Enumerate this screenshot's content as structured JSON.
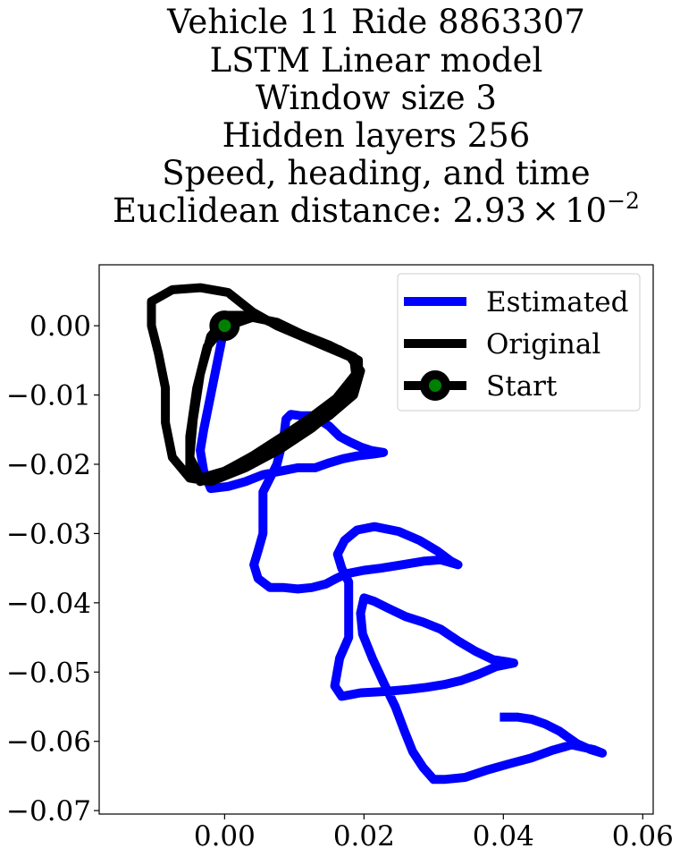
{
  "chart_data": {
    "type": "line",
    "title_lines": [
      "Vehicle 11 Ride 8863307",
      "LSTM Linear model",
      "Window size 3",
      "Hidden layers 256",
      "Speed, heading, and time"
    ],
    "title_last_prefix": "Euclidean distance: ",
    "title_last_mantissa": "2.93",
    "title_last_times": "×",
    "title_last_base": "10",
    "title_last_exponent": "−2",
    "xlabel": "",
    "ylabel": "",
    "xlim": [
      -0.018,
      0.0615
    ],
    "ylim": [
      -0.0705,
      0.0088
    ],
    "xticks": [
      0.0,
      0.02,
      0.04,
      0.06
    ],
    "xtick_labels": [
      "0.00",
      "0.02",
      "0.04",
      "0.06"
    ],
    "yticks": [
      0.0,
      -0.01,
      -0.02,
      -0.03,
      -0.04,
      -0.05,
      -0.06,
      -0.07
    ],
    "ytick_labels": [
      "0.00",
      "−0.01",
      "−0.02",
      "−0.03",
      "−0.04",
      "−0.05",
      "−0.06",
      "−0.07"
    ],
    "grid": false,
    "legend_position": "upper right",
    "series": [
      {
        "name": "Estimated",
        "color": "#0000ff",
        "points": [
          [
            0.0,
            0.0
          ],
          [
            -0.001,
            -0.005
          ],
          [
            -0.002,
            -0.01
          ],
          [
            -0.003,
            -0.015
          ],
          [
            -0.0035,
            -0.018
          ],
          [
            -0.003,
            -0.021
          ],
          [
            -0.002,
            -0.0235
          ],
          [
            0.0005,
            -0.0232
          ],
          [
            0.003,
            -0.0225
          ],
          [
            0.0055,
            -0.0215
          ],
          [
            0.008,
            -0.021
          ],
          [
            0.0105,
            -0.0205
          ],
          [
            0.013,
            -0.0205
          ],
          [
            0.015,
            -0.0198
          ],
          [
            0.017,
            -0.0192
          ],
          [
            0.019,
            -0.0188
          ],
          [
            0.0215,
            -0.0185
          ],
          [
            0.0228,
            -0.0183
          ],
          [
            0.021,
            -0.018
          ],
          [
            0.0195,
            -0.0175
          ],
          [
            0.018,
            -0.0168
          ],
          [
            0.0165,
            -0.016
          ],
          [
            0.015,
            -0.0145
          ],
          [
            0.0135,
            -0.0135
          ],
          [
            0.0125,
            -0.013
          ],
          [
            0.011,
            -0.013
          ],
          [
            0.0095,
            -0.0128
          ],
          [
            0.0088,
            -0.0135
          ],
          [
            0.0085,
            -0.016
          ],
          [
            0.0075,
            -0.02
          ],
          [
            0.0065,
            -0.022
          ],
          [
            0.0055,
            -0.024
          ],
          [
            0.0055,
            -0.027
          ],
          [
            0.0055,
            -0.03
          ],
          [
            0.0048,
            -0.0325
          ],
          [
            0.0042,
            -0.0345
          ],
          [
            0.0048,
            -0.0365
          ],
          [
            0.0065,
            -0.0378
          ],
          [
            0.0085,
            -0.0378
          ],
          [
            0.0105,
            -0.038
          ],
          [
            0.0125,
            -0.0378
          ],
          [
            0.0145,
            -0.0373
          ],
          [
            0.016,
            -0.0365
          ],
          [
            0.0175,
            -0.0358
          ],
          [
            0.02,
            -0.0353
          ],
          [
            0.0225,
            -0.035
          ],
          [
            0.0255,
            -0.0345
          ],
          [
            0.0285,
            -0.034
          ],
          [
            0.031,
            -0.0338
          ],
          [
            0.0335,
            -0.0345
          ],
          [
            0.0325,
            -0.034
          ],
          [
            0.0305,
            -0.0325
          ],
          [
            0.028,
            -0.031
          ],
          [
            0.025,
            -0.0297
          ],
          [
            0.0215,
            -0.029
          ],
          [
            0.019,
            -0.0295
          ],
          [
            0.0172,
            -0.031
          ],
          [
            0.0162,
            -0.033
          ],
          [
            0.0168,
            -0.035
          ],
          [
            0.0178,
            -0.037
          ],
          [
            0.0178,
            -0.042
          ],
          [
            0.0178,
            -0.045
          ],
          [
            0.0165,
            -0.048
          ],
          [
            0.0158,
            -0.052
          ],
          [
            0.0168,
            -0.0535
          ],
          [
            0.0195,
            -0.053
          ],
          [
            0.023,
            -0.0528
          ],
          [
            0.0265,
            -0.0525
          ],
          [
            0.029,
            -0.0522
          ],
          [
            0.0315,
            -0.0518
          ],
          [
            0.034,
            -0.0512
          ],
          [
            0.0365,
            -0.0503
          ],
          [
            0.039,
            -0.0492
          ],
          [
            0.0415,
            -0.0487
          ],
          [
            0.0405,
            -0.0485
          ],
          [
            0.0385,
            -0.0482
          ],
          [
            0.036,
            -0.047
          ],
          [
            0.0335,
            -0.0455
          ],
          [
            0.031,
            -0.0438
          ],
          [
            0.0285,
            -0.0428
          ],
          [
            0.026,
            -0.042
          ],
          [
            0.0235,
            -0.0408
          ],
          [
            0.0215,
            -0.0398
          ],
          [
            0.02,
            -0.0393
          ],
          [
            0.0195,
            -0.0415
          ],
          [
            0.0198,
            -0.0445
          ],
          [
            0.0212,
            -0.048
          ],
          [
            0.0228,
            -0.0515
          ],
          [
            0.0245,
            -0.055
          ],
          [
            0.0258,
            -0.0585
          ],
          [
            0.027,
            -0.0615
          ],
          [
            0.0285,
            -0.0638
          ],
          [
            0.03,
            -0.0655
          ],
          [
            0.0315,
            -0.0655
          ],
          [
            0.0345,
            -0.0652
          ],
          [
            0.0375,
            -0.0642
          ],
          [
            0.041,
            -0.0632
          ],
          [
            0.044,
            -0.0624
          ],
          [
            0.047,
            -0.0613
          ],
          [
            0.0498,
            -0.0605
          ],
          [
            0.053,
            -0.0612
          ],
          [
            0.0542,
            -0.0617
          ],
          [
            0.0525,
            -0.0612
          ],
          [
            0.0505,
            -0.0603
          ],
          [
            0.048,
            -0.0585
          ],
          [
            0.046,
            -0.0575
          ],
          [
            0.044,
            -0.0568
          ],
          [
            0.042,
            -0.0565
          ],
          [
            0.0395,
            -0.0565
          ]
        ]
      },
      {
        "name": "Original",
        "color": "#000000",
        "points": [
          [
            0.0,
            0.0
          ],
          [
            -0.0025,
            -0.003
          ],
          [
            -0.004,
            -0.009
          ],
          [
            -0.005,
            -0.016
          ],
          [
            -0.005,
            -0.021
          ],
          [
            -0.0035,
            -0.0225
          ],
          [
            -0.0005,
            -0.0215
          ],
          [
            0.003,
            -0.02
          ],
          [
            0.007,
            -0.0178
          ],
          [
            0.011,
            -0.0155
          ],
          [
            0.015,
            -0.013
          ],
          [
            0.0185,
            -0.01
          ],
          [
            0.0195,
            -0.0065
          ],
          [
            0.018,
            -0.0045
          ],
          [
            0.0145,
            -0.003
          ],
          [
            0.011,
            -0.0015
          ],
          [
            0.0075,
            0.0
          ],
          [
            0.004,
            0.002
          ],
          [
            0.0005,
            0.0048
          ],
          [
            -0.0035,
            0.0055
          ],
          [
            -0.0075,
            0.0052
          ],
          [
            -0.0105,
            0.0035
          ],
          [
            -0.0105,
            0.0
          ],
          [
            -0.0095,
            -0.004
          ],
          [
            -0.0085,
            -0.009
          ],
          [
            -0.0085,
            -0.014
          ],
          [
            -0.0075,
            -0.019
          ],
          [
            -0.005,
            -0.022
          ],
          [
            -0.002,
            -0.0225
          ],
          [
            0.003,
            -0.0205
          ],
          [
            0.008,
            -0.0178
          ],
          [
            0.0125,
            -0.0148
          ],
          [
            0.0165,
            -0.0115
          ],
          [
            0.0192,
            -0.0075
          ],
          [
            0.0192,
            -0.005
          ],
          [
            0.0165,
            -0.0035
          ],
          [
            0.012,
            -0.0018
          ],
          [
            0.008,
            0.0
          ],
          [
            0.004,
            0.0015
          ],
          [
            0.0005,
            0.0015
          ],
          [
            -0.002,
            -0.0015
          ],
          [
            -0.0035,
            -0.007
          ],
          [
            -0.0045,
            -0.0135
          ],
          [
            -0.005,
            -0.019
          ],
          [
            -0.0035,
            -0.022
          ],
          [
            0.0,
            -0.021
          ],
          [
            0.004,
            -0.0188
          ],
          [
            0.008,
            -0.0162
          ],
          [
            0.012,
            -0.0135
          ],
          [
            0.016,
            -0.0105
          ],
          [
            0.0188,
            -0.007
          ],
          [
            0.0185,
            -0.0045
          ],
          [
            0.015,
            -0.0028
          ],
          [
            0.011,
            -0.0012
          ],
          [
            0.0075,
            0.0005
          ],
          [
            0.004,
            0.0012
          ],
          [
            0.0005,
            0.0
          ]
        ]
      }
    ],
    "start_marker": {
      "name": "Start",
      "x": 0.0,
      "y": 0.0,
      "edge_color": "#000000",
      "face_color": "#008000"
    }
  }
}
